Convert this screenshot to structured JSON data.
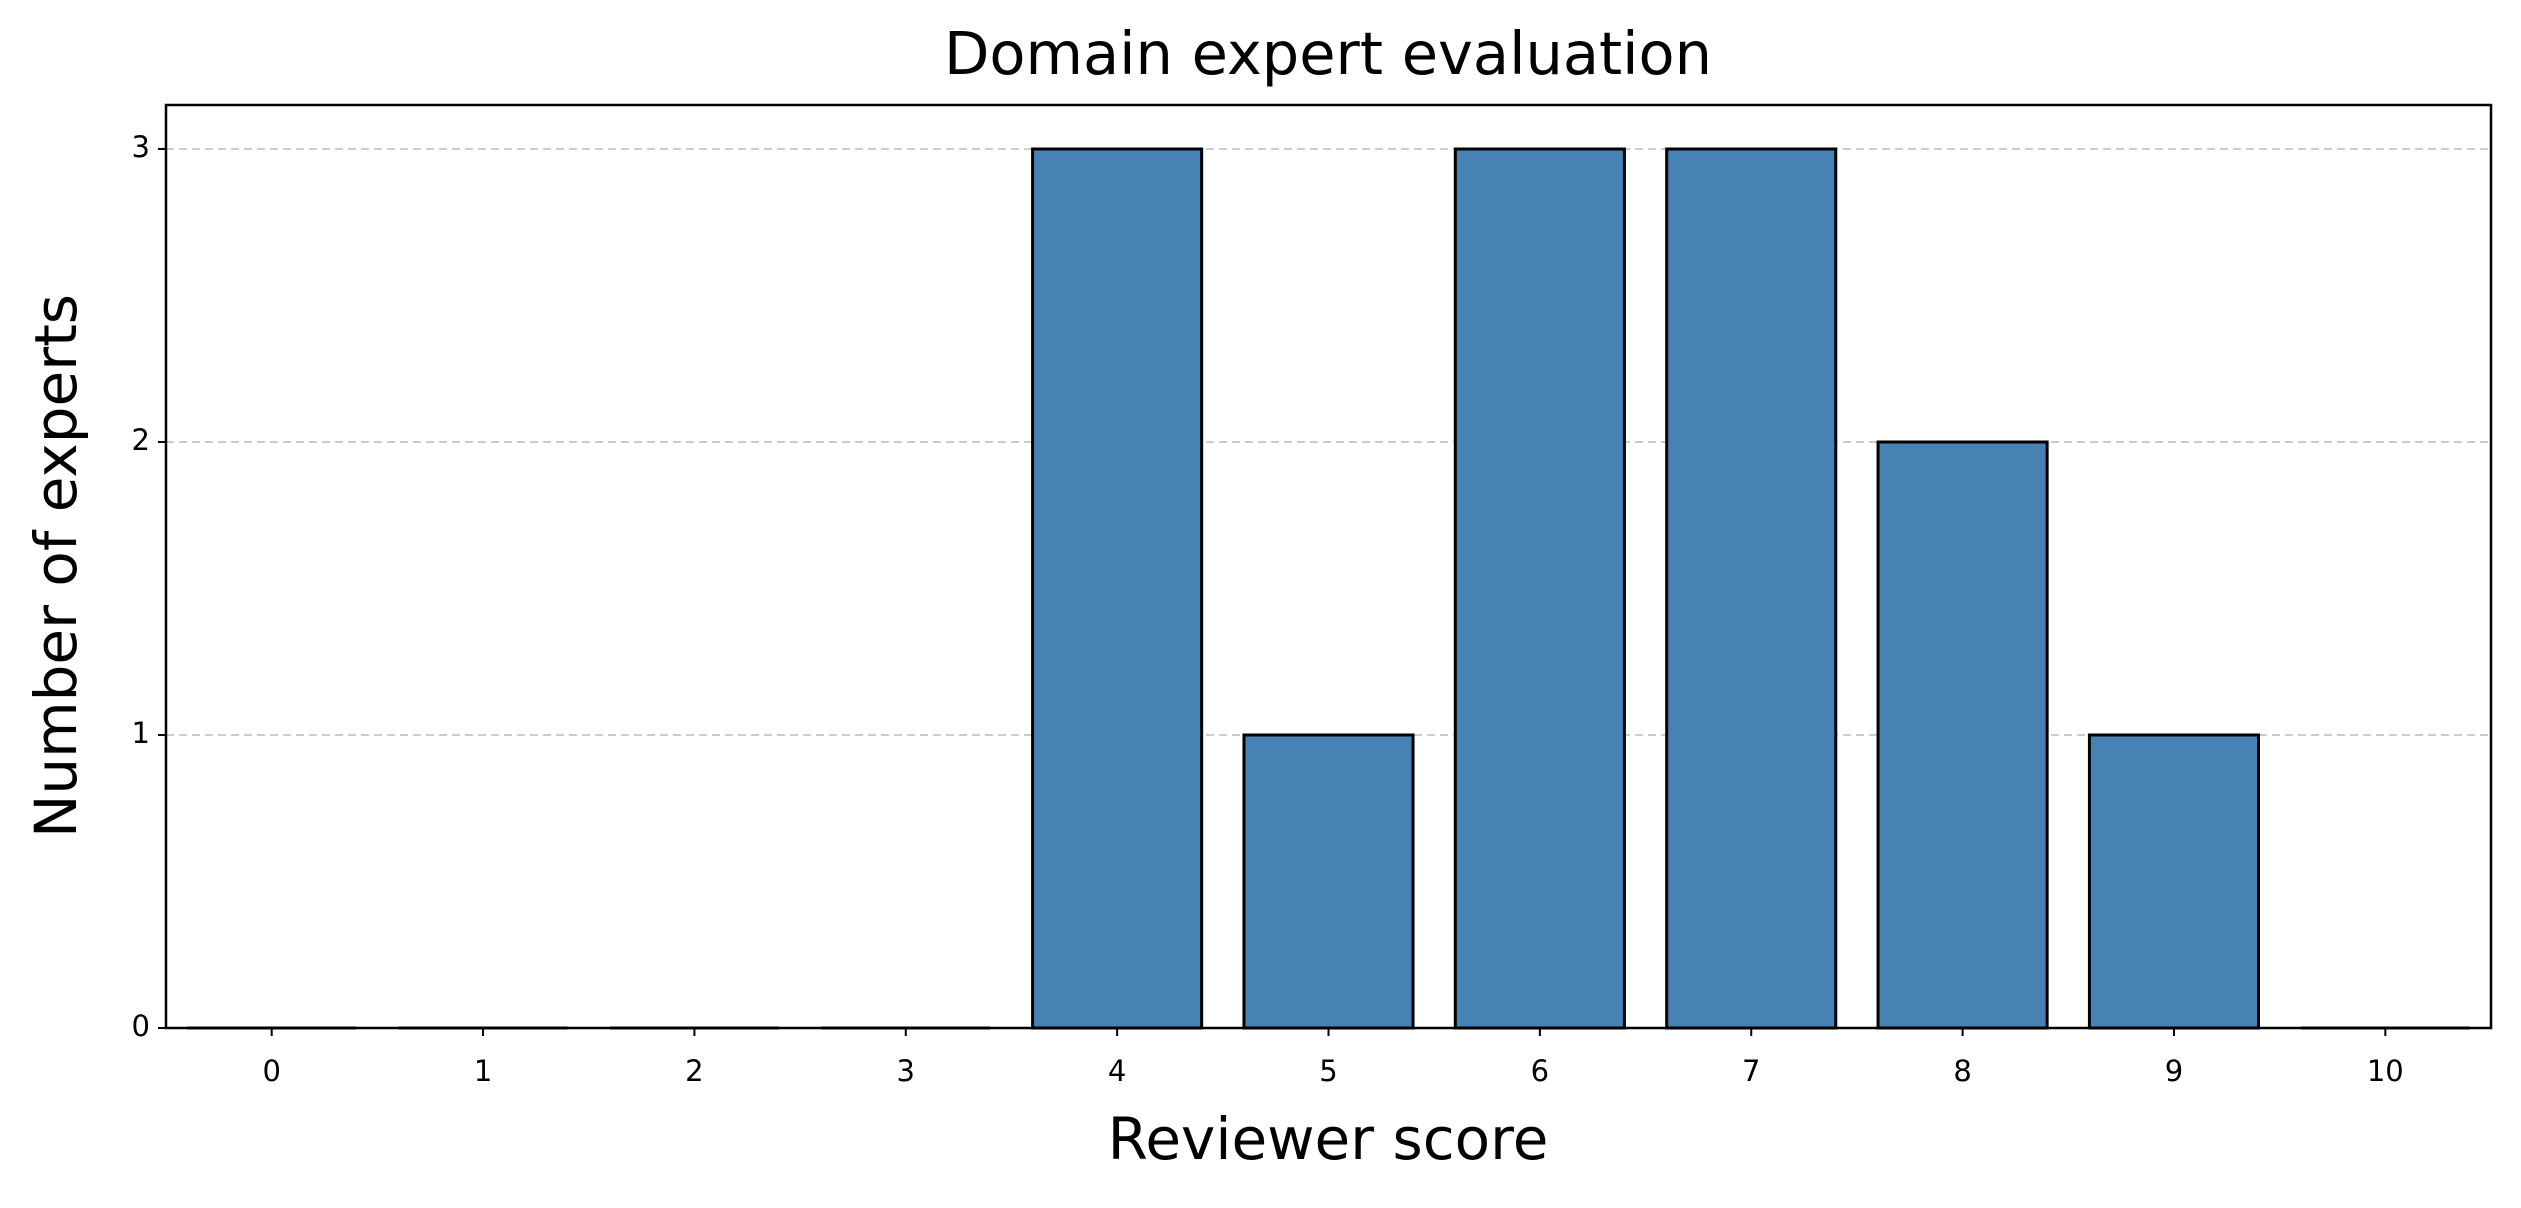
{
  "chart_data": {
    "type": "bar",
    "title": "Domain expert evaluation",
    "x_label": "Reviewer score",
    "y_label": "Number of experts",
    "x": [
      0,
      1,
      2,
      3,
      4,
      5,
      6,
      7,
      8,
      9,
      10
    ],
    "values": [
      0,
      0,
      0,
      0,
      3,
      1,
      3,
      3,
      2,
      1,
      0
    ],
    "color": "#4682b4",
    "xlim": [
      -0.5,
      10.5
    ],
    "xticks": [
      0,
      1,
      2,
      3,
      4,
      5,
      6,
      7,
      8,
      9,
      10
    ],
    "ylim": [
      0,
      3.15
    ],
    "yticks": [
      0,
      1,
      2,
      3
    ],
    "grid": true
  }
}
